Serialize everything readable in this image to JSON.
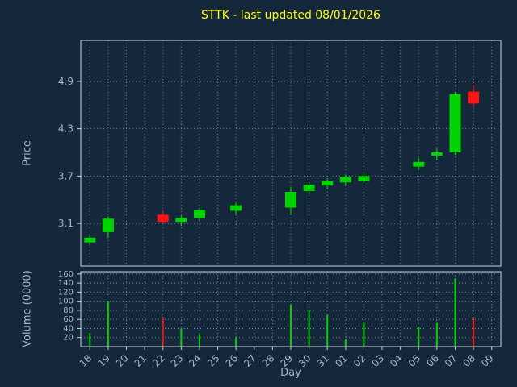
{
  "chart": {
    "title": "STTK - last updated 08/01/2026",
    "xlabel": "Day",
    "price_ylabel": "Price",
    "volume_ylabel": "Volume (0000)"
  },
  "colors": {
    "background": "#15273b",
    "up": "#00d400",
    "down": "#ff1414",
    "grid": "#7e8b99",
    "axis": "#c9d2da",
    "tick_text": "#a2b6cc",
    "title": "#ffff00"
  },
  "chart_data": [
    {
      "type": "candlestick",
      "title": "STTK - last updated 08/01/2026",
      "xlabel": "Day",
      "ylabel": "Price",
      "grid": "dotted",
      "legend": "none",
      "x_ticks": [
        "18",
        "19",
        "20",
        "21",
        "22",
        "23",
        "24",
        "25",
        "26",
        "27",
        "28",
        "29",
        "30",
        "31",
        "01",
        "02",
        "03",
        "04",
        "05",
        "06",
        "07",
        "08",
        "09"
      ],
      "y_ticks": [
        3.1,
        3.7,
        4.3,
        4.9
      ],
      "ylim": [
        2.56,
        5.42
      ],
      "candles": [
        {
          "day": "18",
          "open": 2.86,
          "high": 2.95,
          "low": 2.82,
          "close": 2.92,
          "direction": "up"
        },
        {
          "day": "19",
          "open": 2.99,
          "high": 3.19,
          "low": 2.92,
          "close": 3.16,
          "direction": "up"
        },
        {
          "day": "22",
          "open": 3.21,
          "high": 3.26,
          "low": 3.09,
          "close": 3.12,
          "direction": "down"
        },
        {
          "day": "23",
          "open": 3.12,
          "high": 3.2,
          "low": 3.07,
          "close": 3.17,
          "direction": "up"
        },
        {
          "day": "24",
          "open": 3.17,
          "high": 3.3,
          "low": 3.13,
          "close": 3.27,
          "direction": "up"
        },
        {
          "day": "26",
          "open": 3.26,
          "high": 3.36,
          "low": 3.22,
          "close": 3.33,
          "direction": "up"
        },
        {
          "day": "29",
          "open": 3.3,
          "high": 3.56,
          "low": 3.21,
          "close": 3.5,
          "direction": "up"
        },
        {
          "day": "30",
          "open": 3.51,
          "high": 3.62,
          "low": 3.47,
          "close": 3.59,
          "direction": "up"
        },
        {
          "day": "31",
          "open": 3.58,
          "high": 3.67,
          "low": 3.54,
          "close": 3.64,
          "direction": "up"
        },
        {
          "day": "01",
          "open": 3.62,
          "high": 3.72,
          "low": 3.58,
          "close": 3.69,
          "direction": "up"
        },
        {
          "day": "02",
          "open": 3.64,
          "high": 3.76,
          "low": 3.61,
          "close": 3.7,
          "direction": "up"
        },
        {
          "day": "05",
          "open": 3.82,
          "high": 3.93,
          "low": 3.78,
          "close": 3.88,
          "direction": "up"
        },
        {
          "day": "06",
          "open": 3.96,
          "high": 4.05,
          "low": 3.9,
          "close": 4.0,
          "direction": "up"
        },
        {
          "day": "07",
          "open": 4.0,
          "high": 4.77,
          "low": 3.97,
          "close": 4.74,
          "direction": "up"
        },
        {
          "day": "08",
          "open": 4.77,
          "high": 4.85,
          "low": 4.57,
          "close": 4.62,
          "direction": "down"
        }
      ]
    },
    {
      "type": "bar",
      "ylabel": "Volume (0000)",
      "grid": "dotted",
      "y_ticks": [
        20,
        40,
        60,
        80,
        100,
        120,
        140,
        160
      ],
      "ylim": [
        0,
        165
      ],
      "bars": [
        {
          "day": "18",
          "value": 30,
          "direction": "up"
        },
        {
          "day": "19",
          "value": 100,
          "direction": "up"
        },
        {
          "day": "22",
          "value": 62,
          "direction": "down"
        },
        {
          "day": "23",
          "value": 40,
          "direction": "up"
        },
        {
          "day": "24",
          "value": 28,
          "direction": "up"
        },
        {
          "day": "26",
          "value": 20,
          "direction": "up"
        },
        {
          "day": "29",
          "value": 92,
          "direction": "up"
        },
        {
          "day": "30",
          "value": 80,
          "direction": "up"
        },
        {
          "day": "31",
          "value": 70,
          "direction": "up"
        },
        {
          "day": "01",
          "value": 16,
          "direction": "up"
        },
        {
          "day": "02",
          "value": 55,
          "direction": "up"
        },
        {
          "day": "05",
          "value": 44,
          "direction": "up"
        },
        {
          "day": "06",
          "value": 52,
          "direction": "up"
        },
        {
          "day": "07",
          "value": 150,
          "direction": "up"
        },
        {
          "day": "08",
          "value": 62,
          "direction": "down"
        }
      ]
    }
  ]
}
